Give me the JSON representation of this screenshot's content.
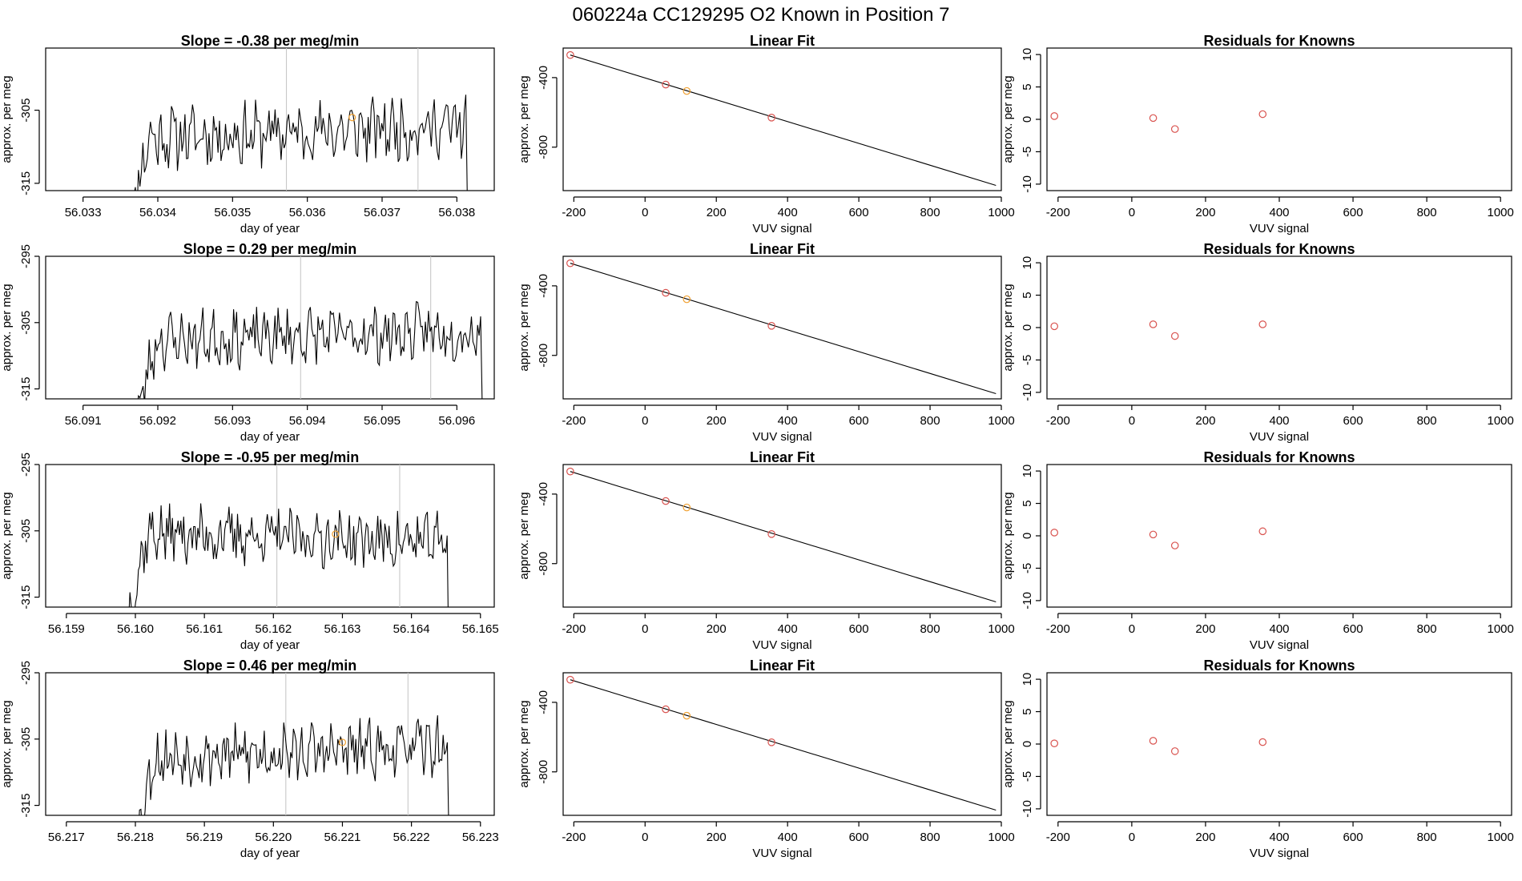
{
  "title": "060224a      CC129295   O2 Known in Position  7",
  "colors": {
    "point_red": "#d9534f",
    "point_orange": "#f0a030",
    "line": "#000000",
    "vline": "#c8c8c8"
  },
  "chart_data": [
    {
      "type": "line",
      "row": 1,
      "col": 1,
      "title": "Slope =  -0.38  per meg/min",
      "xlabel": "day of year",
      "ylabel": "approx. per meg",
      "xlim": [
        56.0325,
        56.0385
      ],
      "ylim": [
        -316,
        -296.5
      ],
      "xticks": [
        56.033,
        56.034,
        56.035,
        56.036,
        56.037,
        56.038
      ],
      "xtick_labels": [
        "56.033",
        "56.034",
        "56.035",
        "56.036",
        "56.037",
        "56.038"
      ],
      "yticks": [
        -305,
        -315
      ],
      "ytick_labels": [
        "-305",
        "-315"
      ],
      "xstart": 56.0336,
      "xend": 56.0382,
      "base": -308,
      "vary": 0.3,
      "ramp": 2.5,
      "seed": 11,
      "vlines": [
        56.03572,
        56.03748
      ],
      "orange_point": [
        56.0366,
        -306.0
      ]
    },
    {
      "type": "scatter+line",
      "row": 1,
      "col": 2,
      "title": "Linear Fit",
      "xlabel": "VUV signal",
      "ylabel": "approx. per meg",
      "xlim": [
        -230,
        1000
      ],
      "ylim": [
        -1050,
        -230
      ],
      "xticks": [
        -200,
        0,
        200,
        400,
        600,
        800,
        1000
      ],
      "xtick_labels": [
        "-200",
        "0",
        "200",
        "400",
        "600",
        "800",
        "1000"
      ],
      "yticks": [
        -400,
        -800
      ],
      "ytick_labels": [
        "-400",
        "-800"
      ],
      "fit_line": [
        [
          -210,
          -270
        ],
        [
          985,
          -1020
        ]
      ],
      "points": [
        [
          -210,
          -270,
          "red"
        ],
        [
          58,
          -440,
          "red"
        ],
        [
          117,
          -477,
          "orange"
        ],
        [
          355,
          -630,
          "red"
        ]
      ]
    },
    {
      "type": "scatter",
      "row": 1,
      "col": 3,
      "title": "Residuals for Knowns",
      "xlabel": "VUV signal",
      "ylabel": "approx. per meg",
      "xlim": [
        -230,
        1030
      ],
      "ylim": [
        -11,
        11
      ],
      "xticks": [
        -200,
        0,
        200,
        400,
        600,
        800,
        1000
      ],
      "xtick_labels": [
        "-200",
        "0",
        "200",
        "400",
        "600",
        "800",
        "1000"
      ],
      "yticks": [
        10,
        5,
        0,
        -5,
        -10
      ],
      "ytick_labels": [
        "10",
        "5",
        "0",
        "-5",
        "-10"
      ],
      "points": [
        [
          -210,
          0.5,
          "red"
        ],
        [
          58,
          0.2,
          "red"
        ],
        [
          117,
          -1.5,
          "red"
        ],
        [
          355,
          0.8,
          "red"
        ]
      ]
    },
    {
      "type": "line",
      "row": 2,
      "col": 1,
      "title": "Slope =  0.29  per meg/min",
      "xlabel": "day of year",
      "ylabel": "approx. per meg",
      "xlim": [
        56.0905,
        56.0965
      ],
      "ylim": [
        -316.5,
        -295
      ],
      "xticks": [
        56.091,
        56.092,
        56.093,
        56.094,
        56.095,
        56.096
      ],
      "xtick_labels": [
        "56.091",
        "56.092",
        "56.093",
        "56.094",
        "56.095",
        "56.096"
      ],
      "yticks": [
        -295,
        -305,
        -315
      ],
      "ytick_labels": [
        "-295",
        "-305",
        "-315"
      ],
      "xstart": 56.0917,
      "xend": 56.0964,
      "base": -307,
      "vary": 0.25,
      "ramp": 2.0,
      "seed": 23,
      "vlines": [
        56.09391,
        56.09565
      ]
    },
    {
      "type": "scatter+line",
      "row": 2,
      "col": 2,
      "title": "Linear Fit",
      "xlabel": "VUV signal",
      "ylabel": "approx. per meg",
      "xlim": [
        -230,
        1000
      ],
      "ylim": [
        -1050,
        -230
      ],
      "xticks": [
        -200,
        0,
        200,
        400,
        600,
        800,
        1000
      ],
      "xtick_labels": [
        "-200",
        "0",
        "200",
        "400",
        "600",
        "800",
        "1000"
      ],
      "yticks": [
        -400,
        -800
      ],
      "ytick_labels": [
        "-400",
        "-800"
      ],
      "fit_line": [
        [
          -210,
          -270
        ],
        [
          985,
          -1020
        ]
      ],
      "points": [
        [
          -210,
          -270,
          "red"
        ],
        [
          58,
          -440,
          "red"
        ],
        [
          117,
          -477,
          "orange"
        ],
        [
          355,
          -630,
          "red"
        ]
      ]
    },
    {
      "type": "scatter",
      "row": 2,
      "col": 3,
      "title": "Residuals for Knowns",
      "xlabel": "VUV signal",
      "ylabel": "approx. per meg",
      "xlim": [
        -230,
        1030
      ],
      "ylim": [
        -11,
        11
      ],
      "xticks": [
        -200,
        0,
        200,
        400,
        600,
        800,
        1000
      ],
      "xtick_labels": [
        "-200",
        "0",
        "200",
        "400",
        "600",
        "800",
        "1000"
      ],
      "yticks": [
        10,
        5,
        0,
        -5,
        -10
      ],
      "ytick_labels": [
        "10",
        "5",
        "0",
        "-5",
        "-10"
      ],
      "points": [
        [
          -210,
          0.2,
          "red"
        ],
        [
          58,
          0.5,
          "red"
        ],
        [
          117,
          -1.3,
          "red"
        ],
        [
          355,
          0.5,
          "red"
        ]
      ]
    },
    {
      "type": "line",
      "row": 3,
      "col": 1,
      "title": "Slope =  -0.95  per meg/min",
      "xlabel": "day of year",
      "ylabel": "approx. per meg",
      "xlim": [
        56.1587,
        56.1652
      ],
      "ylim": [
        -316.5,
        -295
      ],
      "xticks": [
        56.159,
        56.16,
        56.161,
        56.162,
        56.163,
        56.164,
        56.165
      ],
      "xtick_labels": [
        "56.159",
        "56.160",
        "56.161",
        "56.162",
        "56.163",
        "56.164",
        "56.165"
      ],
      "yticks": [
        -295,
        -305,
        -315
      ],
      "ytick_labels": [
        "-295",
        "-305",
        "-315"
      ],
      "xstart": 56.1599,
      "xend": 56.1646,
      "base": -306,
      "vary": -0.25,
      "ramp": 3.5,
      "seed": 37,
      "vlines": [
        56.16205,
        56.16383
      ],
      "orange_point": [
        56.1629,
        -305.5
      ]
    },
    {
      "type": "scatter+line",
      "row": 3,
      "col": 2,
      "title": "Linear Fit",
      "xlabel": "VUV signal",
      "ylabel": "approx. per meg",
      "xlim": [
        -230,
        1000
      ],
      "ylim": [
        -1050,
        -230
      ],
      "xticks": [
        -200,
        0,
        200,
        400,
        600,
        800,
        1000
      ],
      "xtick_labels": [
        "-200",
        "0",
        "200",
        "400",
        "600",
        "800",
        "1000"
      ],
      "yticks": [
        -400,
        -800
      ],
      "ytick_labels": [
        "-400",
        "-800"
      ],
      "fit_line": [
        [
          -210,
          -270
        ],
        [
          985,
          -1020
        ]
      ],
      "points": [
        [
          -210,
          -270,
          "red"
        ],
        [
          58,
          -440,
          "red"
        ],
        [
          117,
          -477,
          "orange"
        ],
        [
          355,
          -630,
          "red"
        ]
      ]
    },
    {
      "type": "scatter",
      "row": 3,
      "col": 3,
      "title": "Residuals for Knowns",
      "xlabel": "VUV signal",
      "ylabel": "approx. per meg",
      "xlim": [
        -230,
        1030
      ],
      "ylim": [
        -11,
        11
      ],
      "xticks": [
        -200,
        0,
        200,
        400,
        600,
        800,
        1000
      ],
      "xtick_labels": [
        "-200",
        "0",
        "200",
        "400",
        "600",
        "800",
        "1000"
      ],
      "yticks": [
        10,
        5,
        0,
        -5,
        -10
      ],
      "ytick_labels": [
        "10",
        "5",
        "0",
        "-5",
        "-10"
      ],
      "points": [
        [
          -210,
          0.5,
          "red"
        ],
        [
          58,
          0.2,
          "red"
        ],
        [
          117,
          -1.5,
          "red"
        ],
        [
          355,
          0.7,
          "red"
        ]
      ]
    },
    {
      "type": "line",
      "row": 4,
      "col": 1,
      "title": "Slope =  0.46  per meg/min",
      "xlabel": "day of year",
      "ylabel": "approx. per meg",
      "xlim": [
        56.2167,
        56.2232
      ],
      "ylim": [
        -316.5,
        -295
      ],
      "xticks": [
        56.217,
        56.218,
        56.219,
        56.22,
        56.221,
        56.222,
        56.223
      ],
      "xtick_labels": [
        "56.217",
        "56.218",
        "56.219",
        "56.220",
        "56.221",
        "56.222",
        "56.223"
      ],
      "yticks": [
        -295,
        -305,
        -315
      ],
      "ytick_labels": [
        "-295",
        "-305",
        "-315"
      ],
      "xstart": 56.218,
      "xend": 56.2226,
      "base": -307,
      "vary": 0.3,
      "ramp": 2.5,
      "seed": 53,
      "vlines": [
        56.22018,
        56.22195
      ],
      "orange_point": [
        56.221,
        -305.5
      ]
    },
    {
      "type": "scatter+line",
      "row": 4,
      "col": 2,
      "title": "Linear Fit",
      "xlabel": "VUV signal",
      "ylabel": "approx. per meg",
      "xlim": [
        -230,
        1000
      ],
      "ylim": [
        -1050,
        -230
      ],
      "xticks": [
        -200,
        0,
        200,
        400,
        600,
        800,
        1000
      ],
      "xtick_labels": [
        "-200",
        "0",
        "200",
        "400",
        "600",
        "800",
        "1000"
      ],
      "yticks": [
        -400,
        -800
      ],
      "ytick_labels": [
        "-400",
        "-800"
      ],
      "fit_line": [
        [
          -210,
          -270
        ],
        [
          985,
          -1020
        ]
      ],
      "points": [
        [
          -210,
          -270,
          "red"
        ],
        [
          58,
          -440,
          "red"
        ],
        [
          117,
          -477,
          "orange"
        ],
        [
          355,
          -630,
          "red"
        ]
      ]
    },
    {
      "type": "scatter",
      "row": 4,
      "col": 3,
      "title": "Residuals for Knowns",
      "xlabel": "VUV signal",
      "ylabel": "approx. per meg",
      "xlim": [
        -230,
        1030
      ],
      "ylim": [
        -11,
        11
      ],
      "xticks": [
        -200,
        0,
        200,
        400,
        600,
        800,
        1000
      ],
      "xtick_labels": [
        "-200",
        "0",
        "200",
        "400",
        "600",
        "800",
        "1000"
      ],
      "yticks": [
        10,
        5,
        0,
        -5,
        -10
      ],
      "ytick_labels": [
        "10",
        "5",
        "0",
        "-5",
        "-10"
      ],
      "points": [
        [
          -210,
          0.1,
          "red"
        ],
        [
          58,
          0.5,
          "red"
        ],
        [
          117,
          -1.1,
          "red"
        ],
        [
          355,
          0.3,
          "red"
        ]
      ]
    }
  ]
}
